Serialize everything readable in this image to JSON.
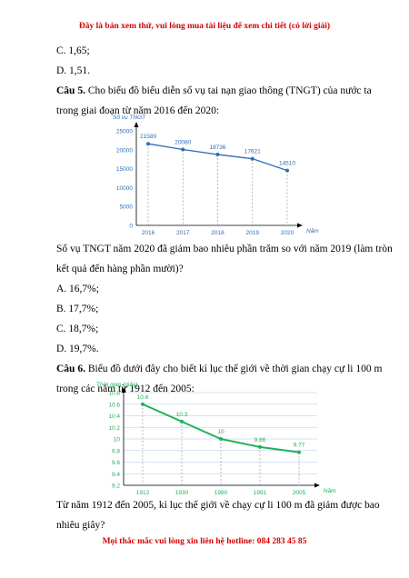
{
  "banner": "Đây là bản xem thử, vui lòng mua tài liệu để xem chi tiết (có lời giải)",
  "footer": "Mọi thắc mắc vui lòng xin liên hệ hotline: 084 283 45 85",
  "prev_options": {
    "c": "C. 1,65;",
    "d": "D. 1,51."
  },
  "q5": {
    "label": "Câu 5.",
    "line1": " Cho biểu đồ biểu diễn số vụ tai nạn giao thông (TNGT) của nước ta",
    "line2": "trong giai đoạn từ năm 2016 đến 2020:",
    "after1": "Số vụ TNGT năm 2020 đã giảm bao nhiêu phần trăm so với năm 2019 (làm tròn",
    "after2": "kết quả đến hàng phần mười)?",
    "options": [
      "A. 16,7%;",
      "B. 17,7%;",
      "C. 18,7%;",
      "D. 19,7%."
    ]
  },
  "q6": {
    "label": "Câu 6.",
    "line1": " Biểu đồ dưới đây cho biết kỉ lục thế giới về thời gian chạy cự li 100 m",
    "line2": "trong các năm từ 1912 đến 2005:",
    "after1": "Từ năm 1912 đến 2005, kỉ lục thế giới về chạy cự li 100 m đã giảm được bao",
    "after2": "nhiêu giây?"
  },
  "chart_data": [
    {
      "type": "line",
      "categories": [
        "2016",
        "2017",
        "2018",
        "2019",
        "2020"
      ],
      "series": [
        {
          "values": [
            21589,
            20080,
            18736,
            17621,
            14510
          ]
        }
      ],
      "data_labels": [
        "21589",
        "20080",
        "18736",
        "17621",
        "14510"
      ],
      "ylabel": "Số vụ TNGT",
      "xlabel": "Năm",
      "yticks": [
        "0",
        "5000",
        "10000",
        "15000",
        "20000",
        "25000"
      ],
      "ylim": [
        0,
        25000
      ],
      "grid": false,
      "color": "#2f6db5"
    },
    {
      "type": "line",
      "categories": [
        "1912",
        "1930",
        "1960",
        "1991",
        "2005"
      ],
      "series": [
        {
          "values": [
            10.6,
            10.3,
            10,
            9.86,
            9.77
          ]
        }
      ],
      "data_labels": [
        "10.6",
        "10.3",
        "10",
        "9.86",
        "9.77"
      ],
      "ylabel": "Thời gian (giây)",
      "xlabel": "Năm",
      "yticks": [
        "9.2",
        "9.4",
        "9.6",
        "9.8",
        "10",
        "10.2",
        "10.4",
        "10.6",
        "10.8"
      ],
      "ylim": [
        9.2,
        10.8
      ],
      "grid": true,
      "color": "#1fb15a"
    }
  ]
}
